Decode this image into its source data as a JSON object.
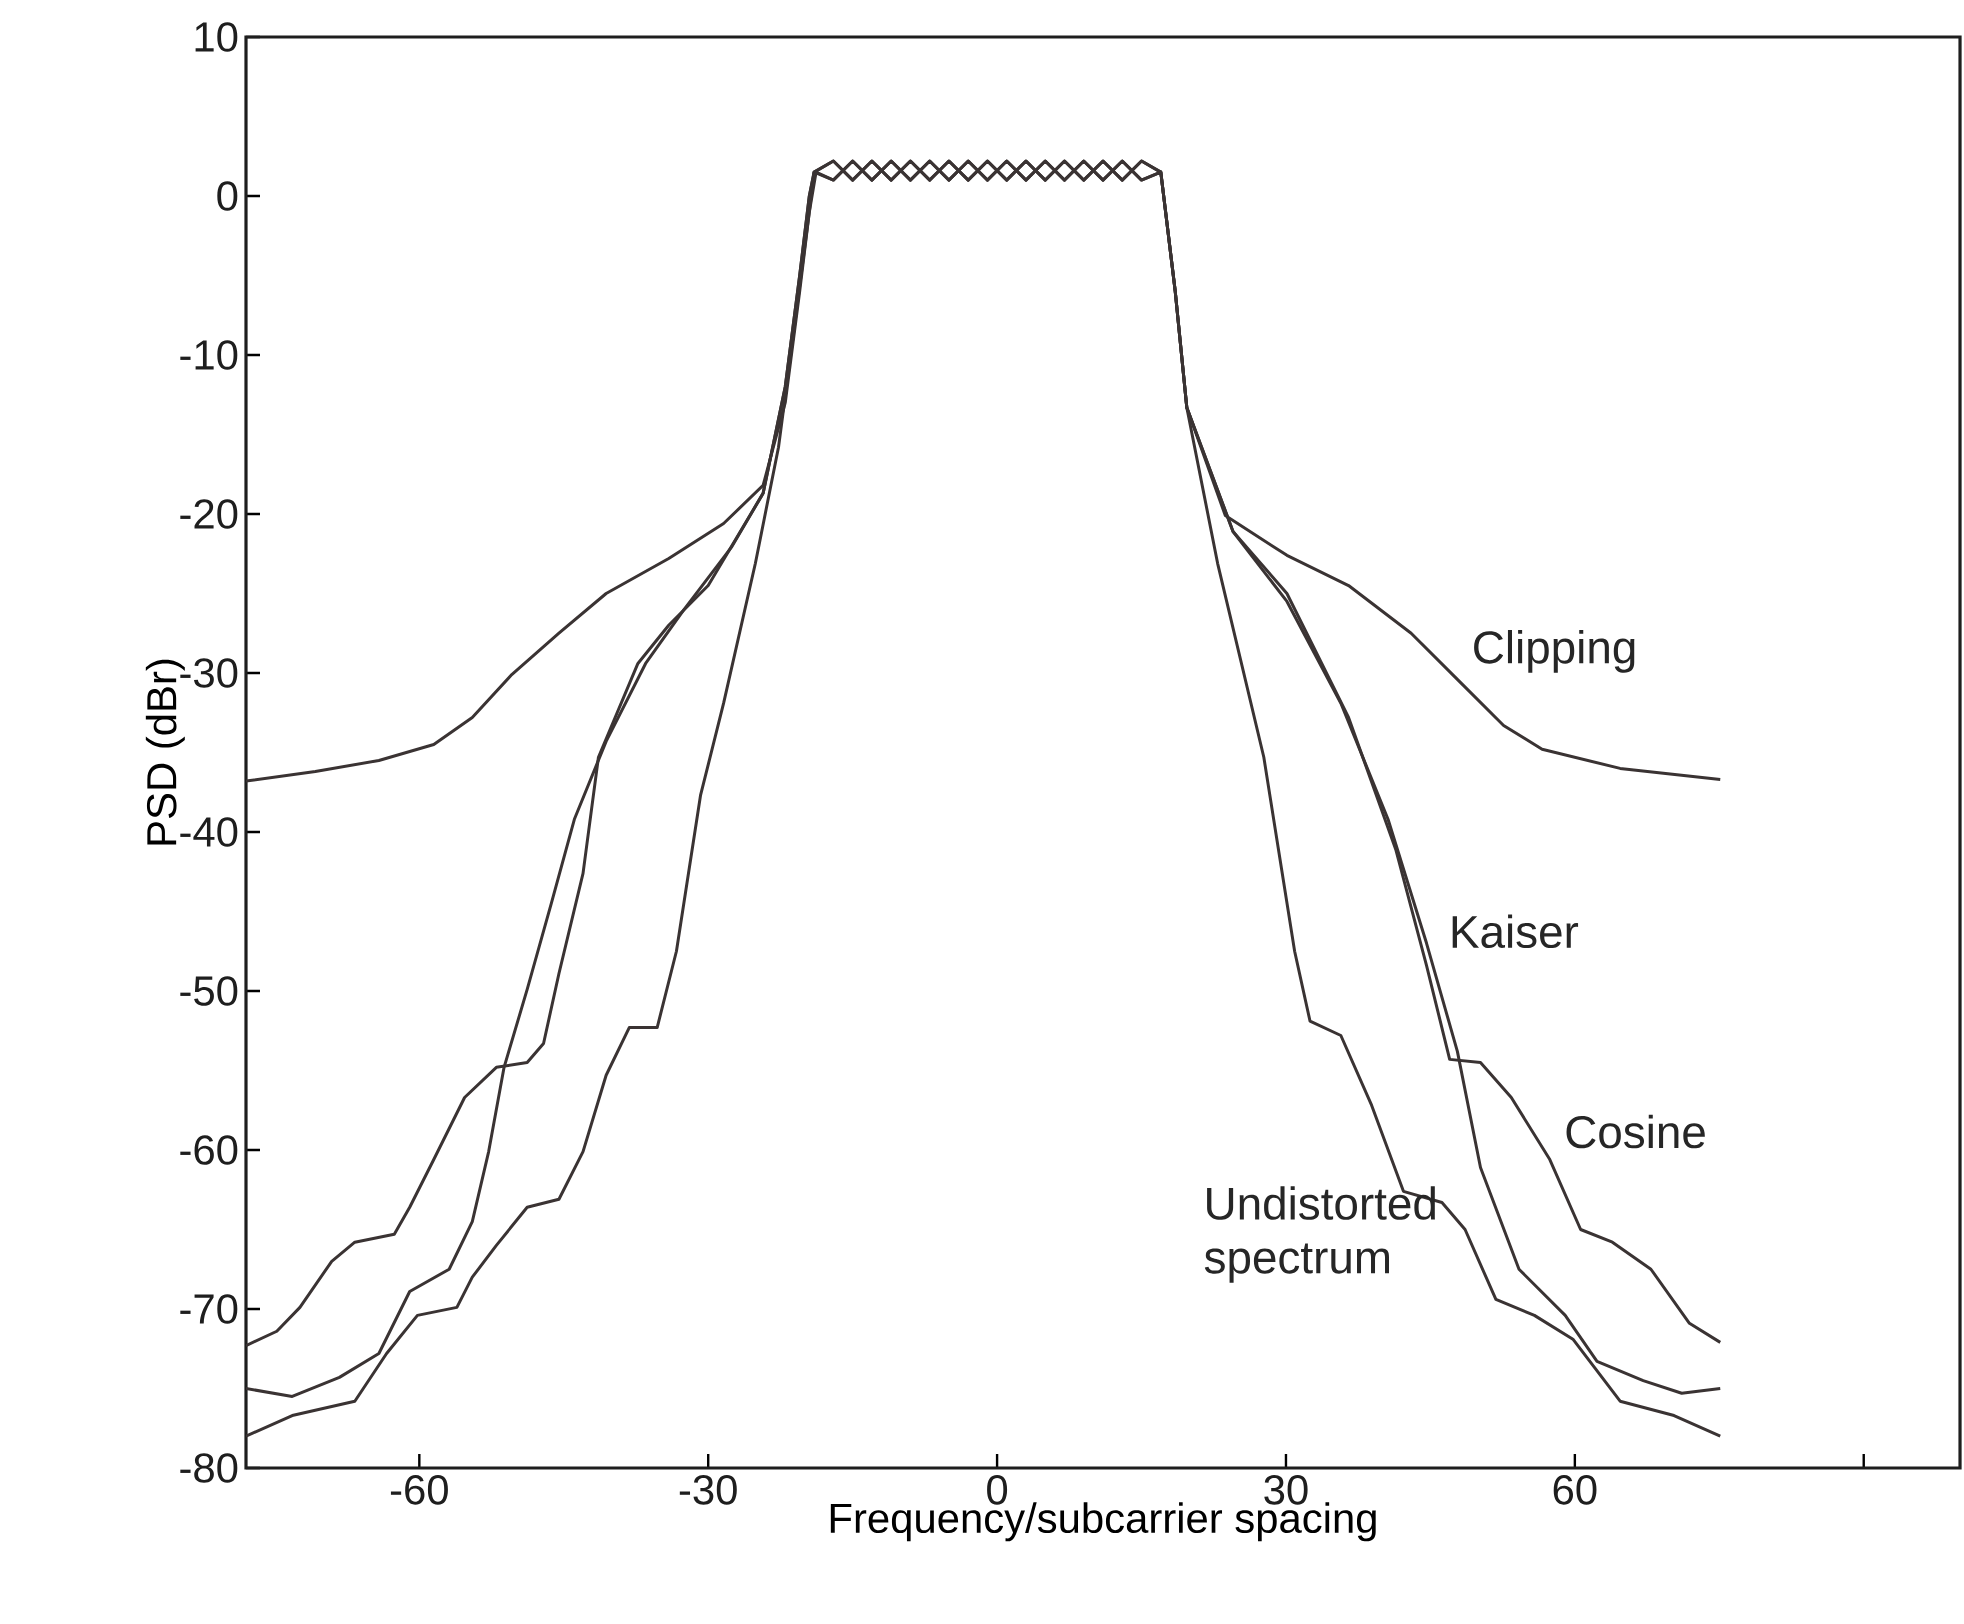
{
  "chart_data": {
    "type": "line",
    "xlabel": "Frequency/subcarrier spacing",
    "ylabel": "PSD (dBr)",
    "xlim": [
      -78,
      100
    ],
    "ylim": [
      -80,
      10
    ],
    "xticks": [
      -60,
      -30,
      0,
      30,
      60,
      {
        "value": 90,
        "label": null
      }
    ],
    "yticks": [
      10,
      0,
      -10,
      -20,
      -30,
      -40,
      -50,
      -60,
      -70,
      -80
    ],
    "series": [
      {
        "color": "#3a3333",
        "x": [
          -78,
          -70.8,
          -64.2,
          -58.5,
          -54.5,
          -50.4,
          -45.5,
          -40.6,
          -34.1,
          -28.4,
          -24.3,
          -22,
          -20.5,
          -19.5,
          -19,
          -17,
          -15,
          -13,
          -11,
          -9,
          -7,
          -5,
          -3,
          -1,
          1,
          3,
          5,
          7,
          9,
          11,
          13,
          15,
          17,
          17.5,
          18.5,
          19.7,
          23.7,
          30.1,
          36.5,
          43,
          47.8,
          52.6,
          56.6,
          64.7,
          75.1
        ],
        "values": [
          -36.8,
          -36.2,
          -35.5,
          -34.5,
          -32.8,
          -30.1,
          -27.5,
          -25.0,
          -22.8,
          -20.6,
          -18.2,
          -13,
          -6,
          -1,
          1.5,
          2.2,
          1.0,
          2.2,
          1.0,
          2.2,
          1.0,
          2.2,
          1.0,
          2.2,
          1.0,
          2.2,
          1.0,
          2.2,
          1.0,
          2.2,
          1.0,
          2.2,
          1.5,
          -1,
          -6,
          -13.3,
          -20.1,
          -22.6,
          -24.5,
          -27.5,
          -30.4,
          -33.3,
          -34.8,
          -36.0,
          -36.7
        ]
      },
      {
        "color": "#3a3333",
        "x": [
          -78,
          -73.2,
          -68.3,
          -64.2,
          -61,
          -56.9,
          -54.5,
          -52.8,
          -51.2,
          -48.8,
          -46.3,
          -43.9,
          -40.6,
          -36.5,
          -32.5,
          -27.6,
          -24.3,
          -22,
          -20.5,
          -19.5,
          -19,
          -17,
          -15,
          -13,
          -11,
          -9,
          -7,
          -5,
          -3,
          -1,
          1,
          3,
          5,
          7,
          9,
          11,
          13,
          15,
          17,
          17.5,
          18.5,
          19.7,
          24.5,
          30.1,
          35.7,
          40.6,
          44.6,
          47.8,
          50.2,
          54.2,
          59,
          62.3,
          67.1,
          71.1,
          75.1
        ],
        "values": [
          -75,
          -75.5,
          -74.3,
          -72.8,
          -68.9,
          -67.5,
          -64.5,
          -60.1,
          -54.8,
          -49.9,
          -44.5,
          -39.2,
          -34.3,
          -29.4,
          -26,
          -22.1,
          -18.7,
          -12,
          -5,
          0,
          1.5,
          1.0,
          2.2,
          1.0,
          2.2,
          1.0,
          2.2,
          1.0,
          2.2,
          1.0,
          2.2,
          1.0,
          2.2,
          1.0,
          2.2,
          1.0,
          2.2,
          1.0,
          1.5,
          -1,
          -6,
          -13.3,
          -21.1,
          -25.5,
          -31.9,
          -39.2,
          -47,
          -53.8,
          -61.1,
          -67.5,
          -70.4,
          -73.3,
          -74.5,
          -75.3,
          -75
        ]
      },
      {
        "color": "#3a3333",
        "x": [
          -78,
          -74.8,
          -72.4,
          -69.1,
          -66.7,
          -62.6,
          -61,
          -58.5,
          -55.3,
          -52,
          -48.8,
          -47.1,
          -45.5,
          -43,
          -41.4,
          -37.3,
          -34.1,
          -30,
          -24.3,
          -22,
          -20.5,
          -19.5,
          -19,
          -17,
          -15,
          -13,
          -11,
          -9,
          -7,
          -5,
          -3,
          -1,
          1,
          3,
          5,
          7,
          9,
          11,
          13,
          15,
          17,
          17.5,
          18.5,
          19.7,
          24.5,
          30.1,
          36.5,
          41.4,
          44.6,
          47,
          50.2,
          53.4,
          57.4,
          60.6,
          63.9,
          67.9,
          71.9,
          75.1
        ],
        "values": [
          -72.3,
          -71.4,
          -69.9,
          -67.0,
          -65.8,
          -65.3,
          -63.6,
          -60.6,
          -56.7,
          -54.8,
          -54.5,
          -53.3,
          -48.9,
          -42.6,
          -35.3,
          -29.4,
          -27,
          -24.5,
          -18.7,
          -12,
          -5,
          0,
          1.5,
          2.2,
          1.0,
          2.2,
          1.0,
          2.2,
          1.0,
          2.2,
          1.0,
          2.2,
          1.0,
          2.2,
          1.0,
          2.2,
          1.0,
          2.2,
          1.0,
          2.2,
          1.5,
          -1,
          -6,
          -13.3,
          -21.1,
          -25,
          -32.8,
          -41.1,
          -48.4,
          -54.3,
          -54.5,
          -56.7,
          -60.6,
          -65,
          -65.8,
          -67.5,
          -70.9,
          -72.1
        ]
      },
      {
        "color": "#3a3333",
        "x": [
          -78,
          -73.2,
          -66.7,
          -63.4,
          -60.2,
          -56.1,
          -54.5,
          -52,
          -48.8,
          -45.5,
          -43,
          -40.6,
          -38.2,
          -35.3,
          -33.3,
          -30.8,
          -28.4,
          -25.1,
          -22.7,
          -21,
          -19.5,
          -18.8,
          -17,
          -15,
          -13,
          -11,
          -9,
          -7,
          -5,
          -3,
          -1,
          1,
          3,
          5,
          7,
          9,
          11,
          13,
          15,
          17,
          17.5,
          18.5,
          19.7,
          22.9,
          27.7,
          30.9,
          32.5,
          35.7,
          38.9,
          42.2,
          46.2,
          48.6,
          51.8,
          55.8,
          59.8,
          64.7,
          70.3,
          75.1
        ],
        "values": [
          -78,
          -76.7,
          -75.8,
          -72.8,
          -70.4,
          -69.9,
          -68,
          -66,
          -63.6,
          -63.1,
          -60.1,
          -55.3,
          -52.3,
          -52.3,
          -47.5,
          -37.7,
          -31.9,
          -23.1,
          -15.8,
          -8,
          -1,
          1.5,
          1.0,
          2.2,
          1.0,
          2.2,
          1.0,
          2.2,
          1.0,
          2.2,
          1.0,
          2.2,
          1.0,
          2.2,
          1.0,
          2.2,
          1.0,
          2.2,
          1.0,
          1.5,
          -1,
          -6,
          -13.3,
          -23.1,
          -35.3,
          -47.5,
          -51.9,
          -52.8,
          -57.2,
          -62.6,
          -63.3,
          -65,
          -69.4,
          -70.4,
          -71.9,
          -75.8,
          -76.7,
          -78
        ]
      }
    ],
    "annotations": [
      {
        "text": "Clipping",
        "x": 47.8,
        "y": -30.4
      },
      {
        "text": "Kaiser",
        "x": 44.6,
        "y": -47
      },
      {
        "text": "Cosine",
        "x": 57.4,
        "y": -60.6
      },
      {
        "text": "Undistorted spectrum",
        "x": 46.2,
        "y": -63.3
      }
    ]
  }
}
